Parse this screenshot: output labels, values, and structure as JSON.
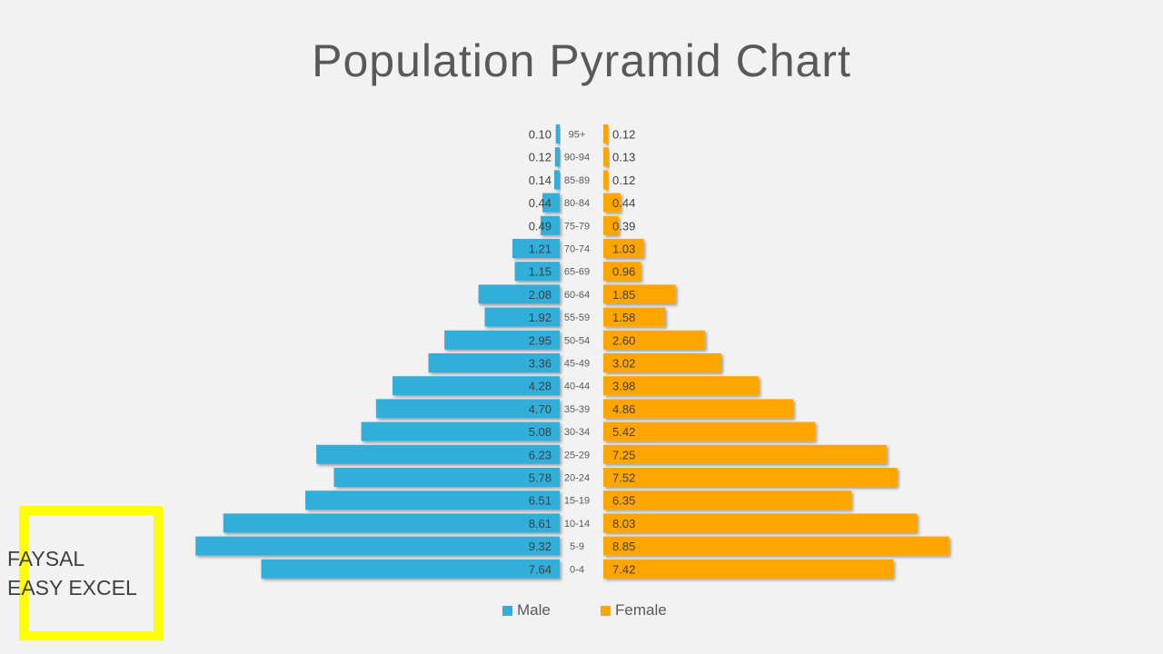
{
  "chart_data": {
    "type": "bar",
    "orientation": "horizontal-pyramid",
    "title": "Population Pyramid Chart",
    "categories": [
      "95+",
      "90-94",
      "85-89",
      "80-84",
      "75-79",
      "70-74",
      "65-69",
      "60-64",
      "55-59",
      "50-54",
      "45-49",
      "40-44",
      "35-39",
      "30-34",
      "25-29",
      "20-24",
      "15-19",
      "10-14",
      "5-9",
      "0-4"
    ],
    "series": [
      {
        "name": "Male",
        "color": "#31aedb",
        "values": [
          0.1,
          0.12,
          0.14,
          0.44,
          0.49,
          1.21,
          1.15,
          2.08,
          1.92,
          2.95,
          3.36,
          4.28,
          4.7,
          5.08,
          6.23,
          5.78,
          6.51,
          8.61,
          9.32,
          7.64
        ],
        "labels": [
          "0.10",
          "0.12",
          "0.14",
          "0.44",
          "0.49",
          "1.21",
          "1.15",
          "2.08",
          "1.92",
          "2.95",
          "3.36",
          "4.28",
          "4.70",
          "5.08",
          "6.23",
          "5.78",
          "6.51",
          "8.61",
          "9.32",
          "7.64"
        ]
      },
      {
        "name": "Female",
        "color": "#ffa500",
        "values": [
          0.12,
          0.13,
          0.12,
          0.44,
          0.39,
          1.03,
          0.96,
          1.85,
          1.58,
          2.6,
          3.02,
          3.98,
          4.86,
          5.42,
          7.25,
          7.52,
          6.35,
          8.03,
          8.85,
          7.42
        ],
        "labels": [
          "0.12",
          "0.13",
          "0.12",
          "0.44",
          "0.39",
          "1.03",
          "0.96",
          "1.85",
          "1.58",
          "2.60",
          "3.02",
          "3.98",
          "4.86",
          "5.42",
          "7.25",
          "7.52",
          "6.35",
          "8.03",
          "8.85",
          "7.42"
        ]
      }
    ],
    "legend_position": "bottom",
    "grid": false
  },
  "watermark": {
    "line1": "FAYSAL",
    "line2": "EASY EXCEL",
    "border_color": "#ffff00"
  }
}
